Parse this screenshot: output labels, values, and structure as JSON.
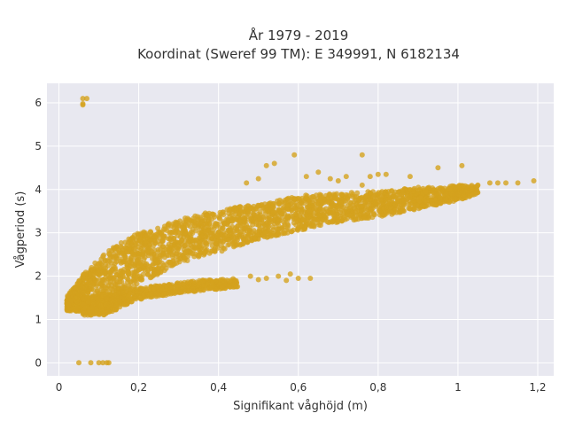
{
  "chart_data": {
    "type": "scatter",
    "title_lines": [
      "År 1979 - 2019",
      "Koordinat (Sweref 99 TM): E 349991, N 6182134"
    ],
    "xlabel": "Signifikant våghöjd (m)",
    "ylabel": "Vågperiod (s)",
    "xlim": [
      -0.03,
      1.24
    ],
    "ylim": [
      -0.3,
      6.45
    ],
    "x_ticks": [
      0,
      0.2,
      0.4,
      0.6,
      0.8,
      1,
      1.2
    ],
    "x_tick_labels": [
      "0",
      "0,2",
      "0,4",
      "0,6",
      "0,8",
      "1",
      "1,2"
    ],
    "y_ticks": [
      0,
      1,
      2,
      3,
      4,
      5,
      6
    ],
    "y_tick_labels": [
      "0",
      "1",
      "2",
      "3",
      "4",
      "5",
      "6"
    ],
    "grid": true,
    "legend": "none",
    "colors": {
      "marker": "#d4a21e",
      "plot_background": "#e8e8f0",
      "grid": "#ffffff"
    },
    "main_band": [
      [
        0.02,
        1.2,
        1.55
      ],
      [
        0.04,
        1.2,
        1.75
      ],
      [
        0.06,
        1.15,
        2.05
      ],
      [
        0.08,
        1.15,
        2.2
      ],
      [
        0.1,
        1.1,
        2.4
      ],
      [
        0.12,
        1.1,
        2.55
      ],
      [
        0.14,
        1.2,
        2.7
      ],
      [
        0.16,
        1.4,
        2.8
      ],
      [
        0.18,
        1.7,
        2.9
      ],
      [
        0.2,
        1.85,
        3.0
      ],
      [
        0.24,
        2.0,
        3.1
      ],
      [
        0.28,
        2.2,
        3.25
      ],
      [
        0.32,
        2.35,
        3.35
      ],
      [
        0.36,
        2.45,
        3.45
      ],
      [
        0.4,
        2.55,
        3.5
      ],
      [
        0.45,
        2.7,
        3.6
      ],
      [
        0.5,
        2.85,
        3.65
      ],
      [
        0.55,
        2.95,
        3.75
      ],
      [
        0.6,
        3.05,
        3.85
      ],
      [
        0.65,
        3.15,
        3.9
      ],
      [
        0.7,
        3.25,
        3.9
      ],
      [
        0.75,
        3.3,
        3.95
      ],
      [
        0.8,
        3.35,
        3.95
      ],
      [
        0.85,
        3.45,
        4.0
      ],
      [
        0.9,
        3.55,
        4.05
      ],
      [
        0.95,
        3.65,
        4.05
      ],
      [
        1.0,
        3.75,
        4.1
      ],
      [
        1.05,
        3.9,
        4.1
      ]
    ],
    "lower_band": [
      [
        0.06,
        1.1,
        1.5
      ],
      [
        0.1,
        1.1,
        1.55
      ],
      [
        0.14,
        1.2,
        1.6
      ],
      [
        0.18,
        1.4,
        1.7
      ],
      [
        0.22,
        1.5,
        1.75
      ],
      [
        0.26,
        1.55,
        1.8
      ],
      [
        0.3,
        1.6,
        1.85
      ],
      [
        0.35,
        1.65,
        1.9
      ],
      [
        0.4,
        1.7,
        1.92
      ],
      [
        0.45,
        1.75,
        1.95
      ]
    ],
    "points": [
      [
        0.06,
        6.1
      ],
      [
        0.07,
        6.1
      ],
      [
        0.06,
        5.95
      ],
      [
        0.06,
        5.98
      ],
      [
        0.05,
        0.0
      ],
      [
        0.08,
        0.0
      ],
      [
        0.1,
        0.0
      ],
      [
        0.11,
        0.0
      ],
      [
        0.12,
        0.0
      ],
      [
        0.125,
        0.0
      ],
      [
        0.52,
        4.55
      ],
      [
        0.59,
        4.8
      ],
      [
        0.54,
        4.6
      ],
      [
        0.5,
        4.25
      ],
      [
        0.47,
        4.15
      ],
      [
        0.62,
        4.3
      ],
      [
        0.65,
        4.4
      ],
      [
        0.68,
        4.25
      ],
      [
        0.72,
        4.3
      ],
      [
        0.7,
        4.2
      ],
      [
        0.76,
        4.8
      ],
      [
        0.78,
        4.3
      ],
      [
        0.8,
        4.35
      ],
      [
        0.82,
        4.35
      ],
      [
        0.76,
        4.1
      ],
      [
        0.88,
        4.3
      ],
      [
        0.95,
        4.5
      ],
      [
        1.01,
        4.55
      ],
      [
        1.05,
        4.1
      ],
      [
        1.08,
        4.15
      ],
      [
        1.1,
        4.15
      ],
      [
        1.12,
        4.15
      ],
      [
        1.15,
        4.15
      ],
      [
        1.19,
        4.2
      ],
      [
        1.03,
        3.85
      ],
      [
        0.98,
        4.0
      ],
      [
        0.92,
        3.95
      ],
      [
        0.6,
        1.95
      ],
      [
        0.57,
        1.9
      ],
      [
        0.55,
        2.0
      ],
      [
        0.52,
        1.95
      ],
      [
        0.5,
        1.92
      ],
      [
        0.48,
        2.0
      ],
      [
        0.63,
        1.95
      ],
      [
        0.58,
        2.05
      ]
    ],
    "dense_counts": {
      "main_band": 2600,
      "lower_band": 700
    }
  }
}
